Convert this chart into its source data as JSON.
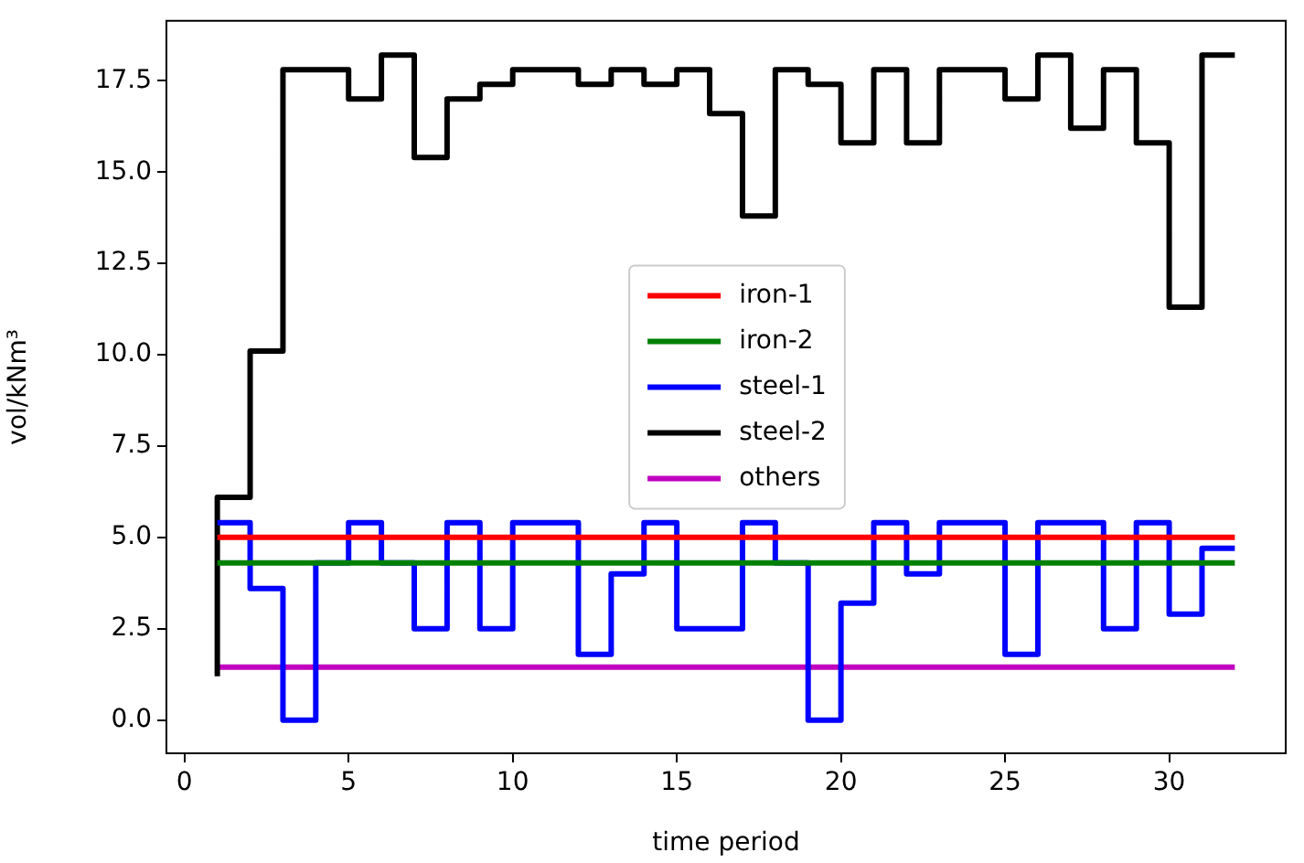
{
  "chart_data": {
    "type": "step",
    "xlabel": "time period",
    "ylabel": "vol/kNm³",
    "x": [
      1,
      2,
      3,
      4,
      5,
      6,
      7,
      8,
      9,
      10,
      11,
      12,
      13,
      14,
      15,
      16,
      17,
      18,
      19,
      20,
      21,
      22,
      23,
      24,
      25,
      26,
      27,
      28,
      29,
      30,
      31,
      32
    ],
    "series": [
      {
        "name": "iron-1",
        "color": "#ff0000",
        "values": [
          5.0,
          5.0,
          5.0,
          5.0,
          5.0,
          5.0,
          5.0,
          5.0,
          5.0,
          5.0,
          5.0,
          5.0,
          5.0,
          5.0,
          5.0,
          5.0,
          5.0,
          5.0,
          5.0,
          5.0,
          5.0,
          5.0,
          5.0,
          5.0,
          5.0,
          5.0,
          5.0,
          5.0,
          5.0,
          5.0,
          5.0,
          5.0
        ]
      },
      {
        "name": "iron-2",
        "color": "#008000",
        "values": [
          4.3,
          4.3,
          4.3,
          4.3,
          4.3,
          4.3,
          4.3,
          4.3,
          4.3,
          4.3,
          4.3,
          4.3,
          4.3,
          4.3,
          4.3,
          4.3,
          4.3,
          4.3,
          4.3,
          4.3,
          4.3,
          4.3,
          4.3,
          4.3,
          4.3,
          4.3,
          4.3,
          4.3,
          4.3,
          4.3,
          4.3,
          4.3
        ]
      },
      {
        "name": "steel-1",
        "color": "#0000ff",
        "values": [
          5.4,
          5.4,
          3.6,
          0,
          4.3,
          5.4,
          4.3,
          2.5,
          5.4,
          2.5,
          5.4,
          5.4,
          1.8,
          4.0,
          5.4,
          2.5,
          2.5,
          5.4,
          4.3,
          0,
          3.2,
          5.4,
          4.0,
          5.4,
          5.4,
          1.8,
          5.4,
          5.4,
          2.5,
          5.4,
          2.9,
          4.7
        ]
      },
      {
        "name": "steel-2",
        "color": "#000000",
        "values": [
          1.2,
          6.1,
          10.1,
          17.8,
          17.8,
          17.0,
          18.2,
          15.4,
          17.0,
          17.4,
          17.8,
          17.8,
          17.4,
          17.8,
          17.4,
          17.8,
          16.6,
          13.8,
          17.8,
          17.4,
          15.8,
          17.8,
          15.8,
          17.8,
          17.8,
          17.0,
          18.2,
          16.2,
          17.8,
          15.8,
          11.3,
          18.2
        ]
      },
      {
        "name": "others",
        "color": "#bf00bf",
        "values": [
          1.45,
          1.45,
          1.45,
          1.45,
          1.45,
          1.45,
          1.45,
          1.45,
          1.45,
          1.45,
          1.45,
          1.45,
          1.45,
          1.45,
          1.45,
          1.45,
          1.45,
          1.45,
          1.45,
          1.45,
          1.45,
          1.45,
          1.45,
          1.45,
          1.45,
          1.45,
          1.45,
          1.45,
          1.45,
          1.45,
          1.45,
          1.45
        ]
      }
    ],
    "xlim": [
      -0.55,
      33.55
    ],
    "xticks": [
      0,
      5,
      10,
      15,
      20,
      25,
      30
    ],
    "ylim": [
      -0.91,
      19.14
    ],
    "yticks": [
      {
        "value": 0,
        "label": "0.0"
      },
      {
        "value": 2.5,
        "label": "2.5"
      },
      {
        "value": 5,
        "label": "5.0"
      },
      {
        "value": 7.5,
        "label": "7.5"
      },
      {
        "value": 10,
        "label": "10.0"
      },
      {
        "value": 12.5,
        "label": "12.5"
      },
      {
        "value": 15,
        "label": "15.0"
      },
      {
        "value": 17.5,
        "label": "17.5"
      }
    ],
    "legend": "center",
    "grid": false,
    "marker": "none",
    "line_style": "solid"
  }
}
